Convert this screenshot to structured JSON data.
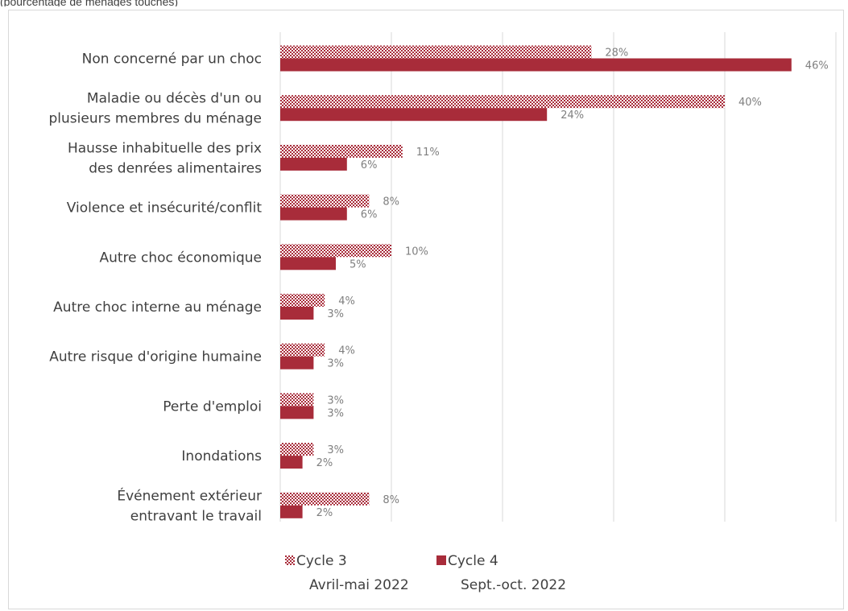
{
  "top_fragment": "(pourcentage de ménages touchés)",
  "chart_data": {
    "type": "bar",
    "orientation": "horizontal",
    "categories": [
      [
        "Non concerné par un choc"
      ],
      [
        "Maladie ou décès d'un ou",
        "plusieurs membres du ménage"
      ],
      [
        "Hausse inhabituelle des prix",
        "des denrées alimentaires"
      ],
      [
        "Violence et insécurité/conflit"
      ],
      [
        "Autre choc économique"
      ],
      [
        "Autre choc interne au ménage"
      ],
      [
        "Autre risque d'origine humaine"
      ],
      [
        "Perte d'emploi"
      ],
      [
        "Inondations"
      ],
      [
        "Événement extérieur",
        "entravant le travail"
      ]
    ],
    "series": [
      {
        "name": "Cycle 3",
        "subtitle": "Avril-mai 2022",
        "color": "#a82c3a",
        "pattern": "checker",
        "values": [
          28,
          40,
          11,
          8,
          10,
          4,
          4,
          3,
          3,
          8
        ],
        "value_labels": [
          "28%",
          "40%",
          "11%",
          "8%",
          "10%",
          "4%",
          "4%",
          "3%",
          "3%",
          "8%"
        ]
      },
      {
        "name": "Cycle 4",
        "subtitle": "Sept.-oct. 2022",
        "color": "#a82c3a",
        "pattern": "solid",
        "values": [
          46,
          24,
          6,
          6,
          5,
          3,
          3,
          3,
          2,
          2
        ],
        "value_labels": [
          "46%",
          "24%",
          "6%",
          "6%",
          "5%",
          "3%",
          "3%",
          "3%",
          "2%",
          "2%"
        ]
      }
    ],
    "xlim": [
      0,
      50
    ],
    "grid": true,
    "legend_position": "bottom"
  }
}
